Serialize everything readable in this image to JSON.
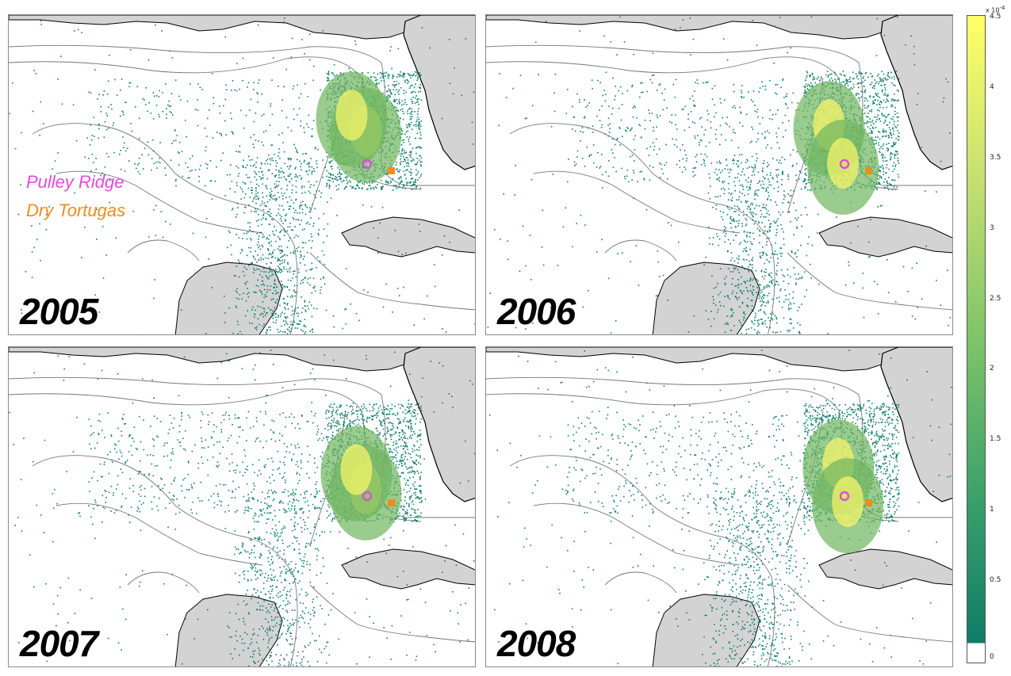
{
  "panels": [
    {
      "year": "2005",
      "spread": 0.55,
      "hot": [
        [
          0.78,
          0.3
        ],
        [
          0.75,
          0.25
        ]
      ],
      "seed": 11
    },
    {
      "year": "2006",
      "spread": 0.75,
      "hot": [
        [
          0.75,
          0.28
        ],
        [
          0.78,
          0.4
        ]
      ],
      "seed": 23
    },
    {
      "year": "2007",
      "spread": 0.85,
      "hot": [
        [
          0.78,
          0.38
        ],
        [
          0.76,
          0.32
        ]
      ],
      "seed": 37
    },
    {
      "year": "2008",
      "spread": 0.7,
      "hot": [
        [
          0.77,
          0.3
        ],
        [
          0.79,
          0.42
        ]
      ],
      "seed": 51
    }
  ],
  "site_legend": {
    "pulley_ridge": {
      "label": "Pulley Ridge",
      "color": "#e24bdc"
    },
    "dry_tortugas": {
      "label": "Dry Tortugas",
      "color": "#f28a1e"
    }
  },
  "colorbar": {
    "exponent_label": "x 10",
    "exponent_power": "-4",
    "ticks": [
      "4.5",
      "4",
      "3.5",
      "3",
      "2.5",
      "2",
      "1.5",
      "1",
      "0.5",
      "0"
    ],
    "colors": [
      "#ffff66",
      "#c5e070",
      "#7fc36a",
      "#3aa06a",
      "#0e7d68",
      "#ffffff"
    ]
  },
  "colors": {
    "land": "#d3d3d3",
    "coast": "#000000",
    "contour": "#777777",
    "particle": "#0e7d68",
    "hot_low": "#6fb560",
    "hot_high": "#f4f46a"
  }
}
